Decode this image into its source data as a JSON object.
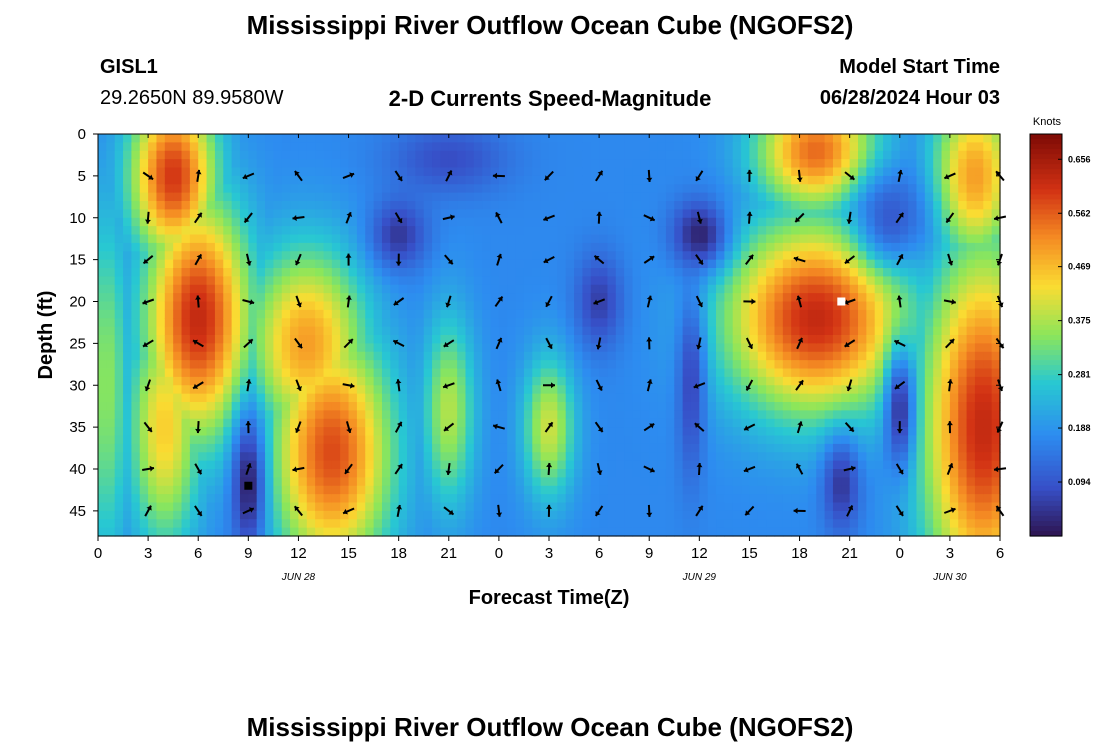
{
  "title": "Mississippi River Outflow Ocean Cube (NGOFS2)",
  "station": {
    "id": "GISL1",
    "coords": "29.2650N  89.9580W"
  },
  "subtitle": "2-D Currents Speed-Magnitude",
  "model_start": {
    "label": "Model Start Time",
    "value": "06/28/2024 Hour 03"
  },
  "footer_title": "Mississippi River Outflow Ocean Cube (NGOFS2)",
  "chart_data": {
    "type": "heatmap",
    "xlabel": "Forecast Time(Z)",
    "ylabel": "Depth (ft)",
    "x_ticks": [
      "0",
      "3",
      "6",
      "9",
      "12",
      "15",
      "18",
      "21",
      "0",
      "3",
      "6",
      "9",
      "12",
      "15",
      "18",
      "21",
      "0",
      "3",
      "6"
    ],
    "date_labels": [
      {
        "text": "JUN 28",
        "at_hour": 12
      },
      {
        "text": "JUN 29",
        "at_hour": 36
      },
      {
        "text": "JUN 30",
        "at_hour": 51
      }
    ],
    "x_range_hours": [
      0,
      54
    ],
    "y_ticks": [
      0,
      5,
      10,
      15,
      20,
      25,
      30,
      35,
      40,
      45
    ],
    "y_range_ft": [
      0,
      48
    ],
    "colorbar": {
      "label": "Knots",
      "ticks": [
        "0.656",
        "0.562",
        "0.469",
        "0.375",
        "0.281",
        "0.188",
        "0.094"
      ],
      "range": [
        0,
        0.7
      ]
    },
    "hot_spots": [
      {
        "hour": 4.5,
        "depth": 5,
        "speed": 0.6,
        "sx": 1.8,
        "sy": 7
      },
      {
        "hour": 6,
        "depth": 22,
        "speed": 0.62,
        "sx": 2.2,
        "sy": 10
      },
      {
        "hour": 4,
        "depth": 35,
        "speed": 0.45,
        "sx": 1.5,
        "sy": 10
      },
      {
        "hour": 14,
        "depth": 38,
        "speed": 0.58,
        "sx": 2.5,
        "sy": 10
      },
      {
        "hour": 12.5,
        "depth": 25,
        "speed": 0.5,
        "sx": 2.5,
        "sy": 8
      },
      {
        "hour": 21,
        "depth": 33,
        "speed": 0.38,
        "sx": 1.1,
        "sy": 8
      },
      {
        "hour": 27,
        "depth": 35,
        "speed": 0.4,
        "sx": 1.1,
        "sy": 6
      },
      {
        "hour": 43,
        "depth": 22,
        "speed": 0.62,
        "sx": 3.8,
        "sy": 8
      },
      {
        "hour": 43,
        "depth": 2,
        "speed": 0.55,
        "sx": 2.5,
        "sy": 5
      },
      {
        "hour": 52.5,
        "depth": 5,
        "speed": 0.5,
        "sx": 1.8,
        "sy": 7
      },
      {
        "hour": 53,
        "depth": 35,
        "speed": 0.62,
        "sx": 2.5,
        "sy": 15
      },
      {
        "hour": 0.5,
        "depth": 30,
        "speed": 0.35,
        "sx": 1,
        "sy": 15
      }
    ],
    "cold_spots": [
      {
        "hour": 9,
        "depth": 42,
        "speed": 0.02,
        "sx": 0.7,
        "sy": 6
      },
      {
        "hour": 18,
        "depth": 12,
        "speed": 0.05,
        "sx": 1.2,
        "sy": 3
      },
      {
        "hour": 21,
        "depth": 3,
        "speed": 0.08,
        "sx": 2.5,
        "sy": 3
      },
      {
        "hour": 36,
        "depth": 12,
        "speed": 0.02,
        "sx": 1.2,
        "sy": 3
      },
      {
        "hour": 30,
        "depth": 20,
        "speed": 0.06,
        "sx": 1,
        "sy": 4
      },
      {
        "hour": 35.5,
        "depth": 30,
        "speed": 0.07,
        "sx": 0.6,
        "sy": 8
      },
      {
        "hour": 44.5,
        "depth": 42,
        "speed": 0.05,
        "sx": 0.8,
        "sy": 4
      },
      {
        "hour": 48,
        "depth": 33,
        "speed": 0.05,
        "sx": 0.6,
        "sy": 5
      },
      {
        "hour": 47.5,
        "depth": 10,
        "speed": 0.1,
        "sx": 1.5,
        "sy": 4
      }
    ],
    "background_speed": 0.17,
    "vector_hours": [
      3,
      6,
      9,
      12,
      15,
      18,
      21,
      24,
      27,
      30,
      33,
      36,
      39,
      42,
      45,
      48,
      51,
      54
    ],
    "vector_depths": [
      5,
      10,
      15,
      20,
      25,
      30,
      35,
      40,
      45
    ],
    "markers": [
      {
        "hour": 9,
        "depth": 42,
        "color": "#000000"
      },
      {
        "hour": 44.5,
        "depth": 20,
        "color": "#ffffff"
      }
    ]
  }
}
